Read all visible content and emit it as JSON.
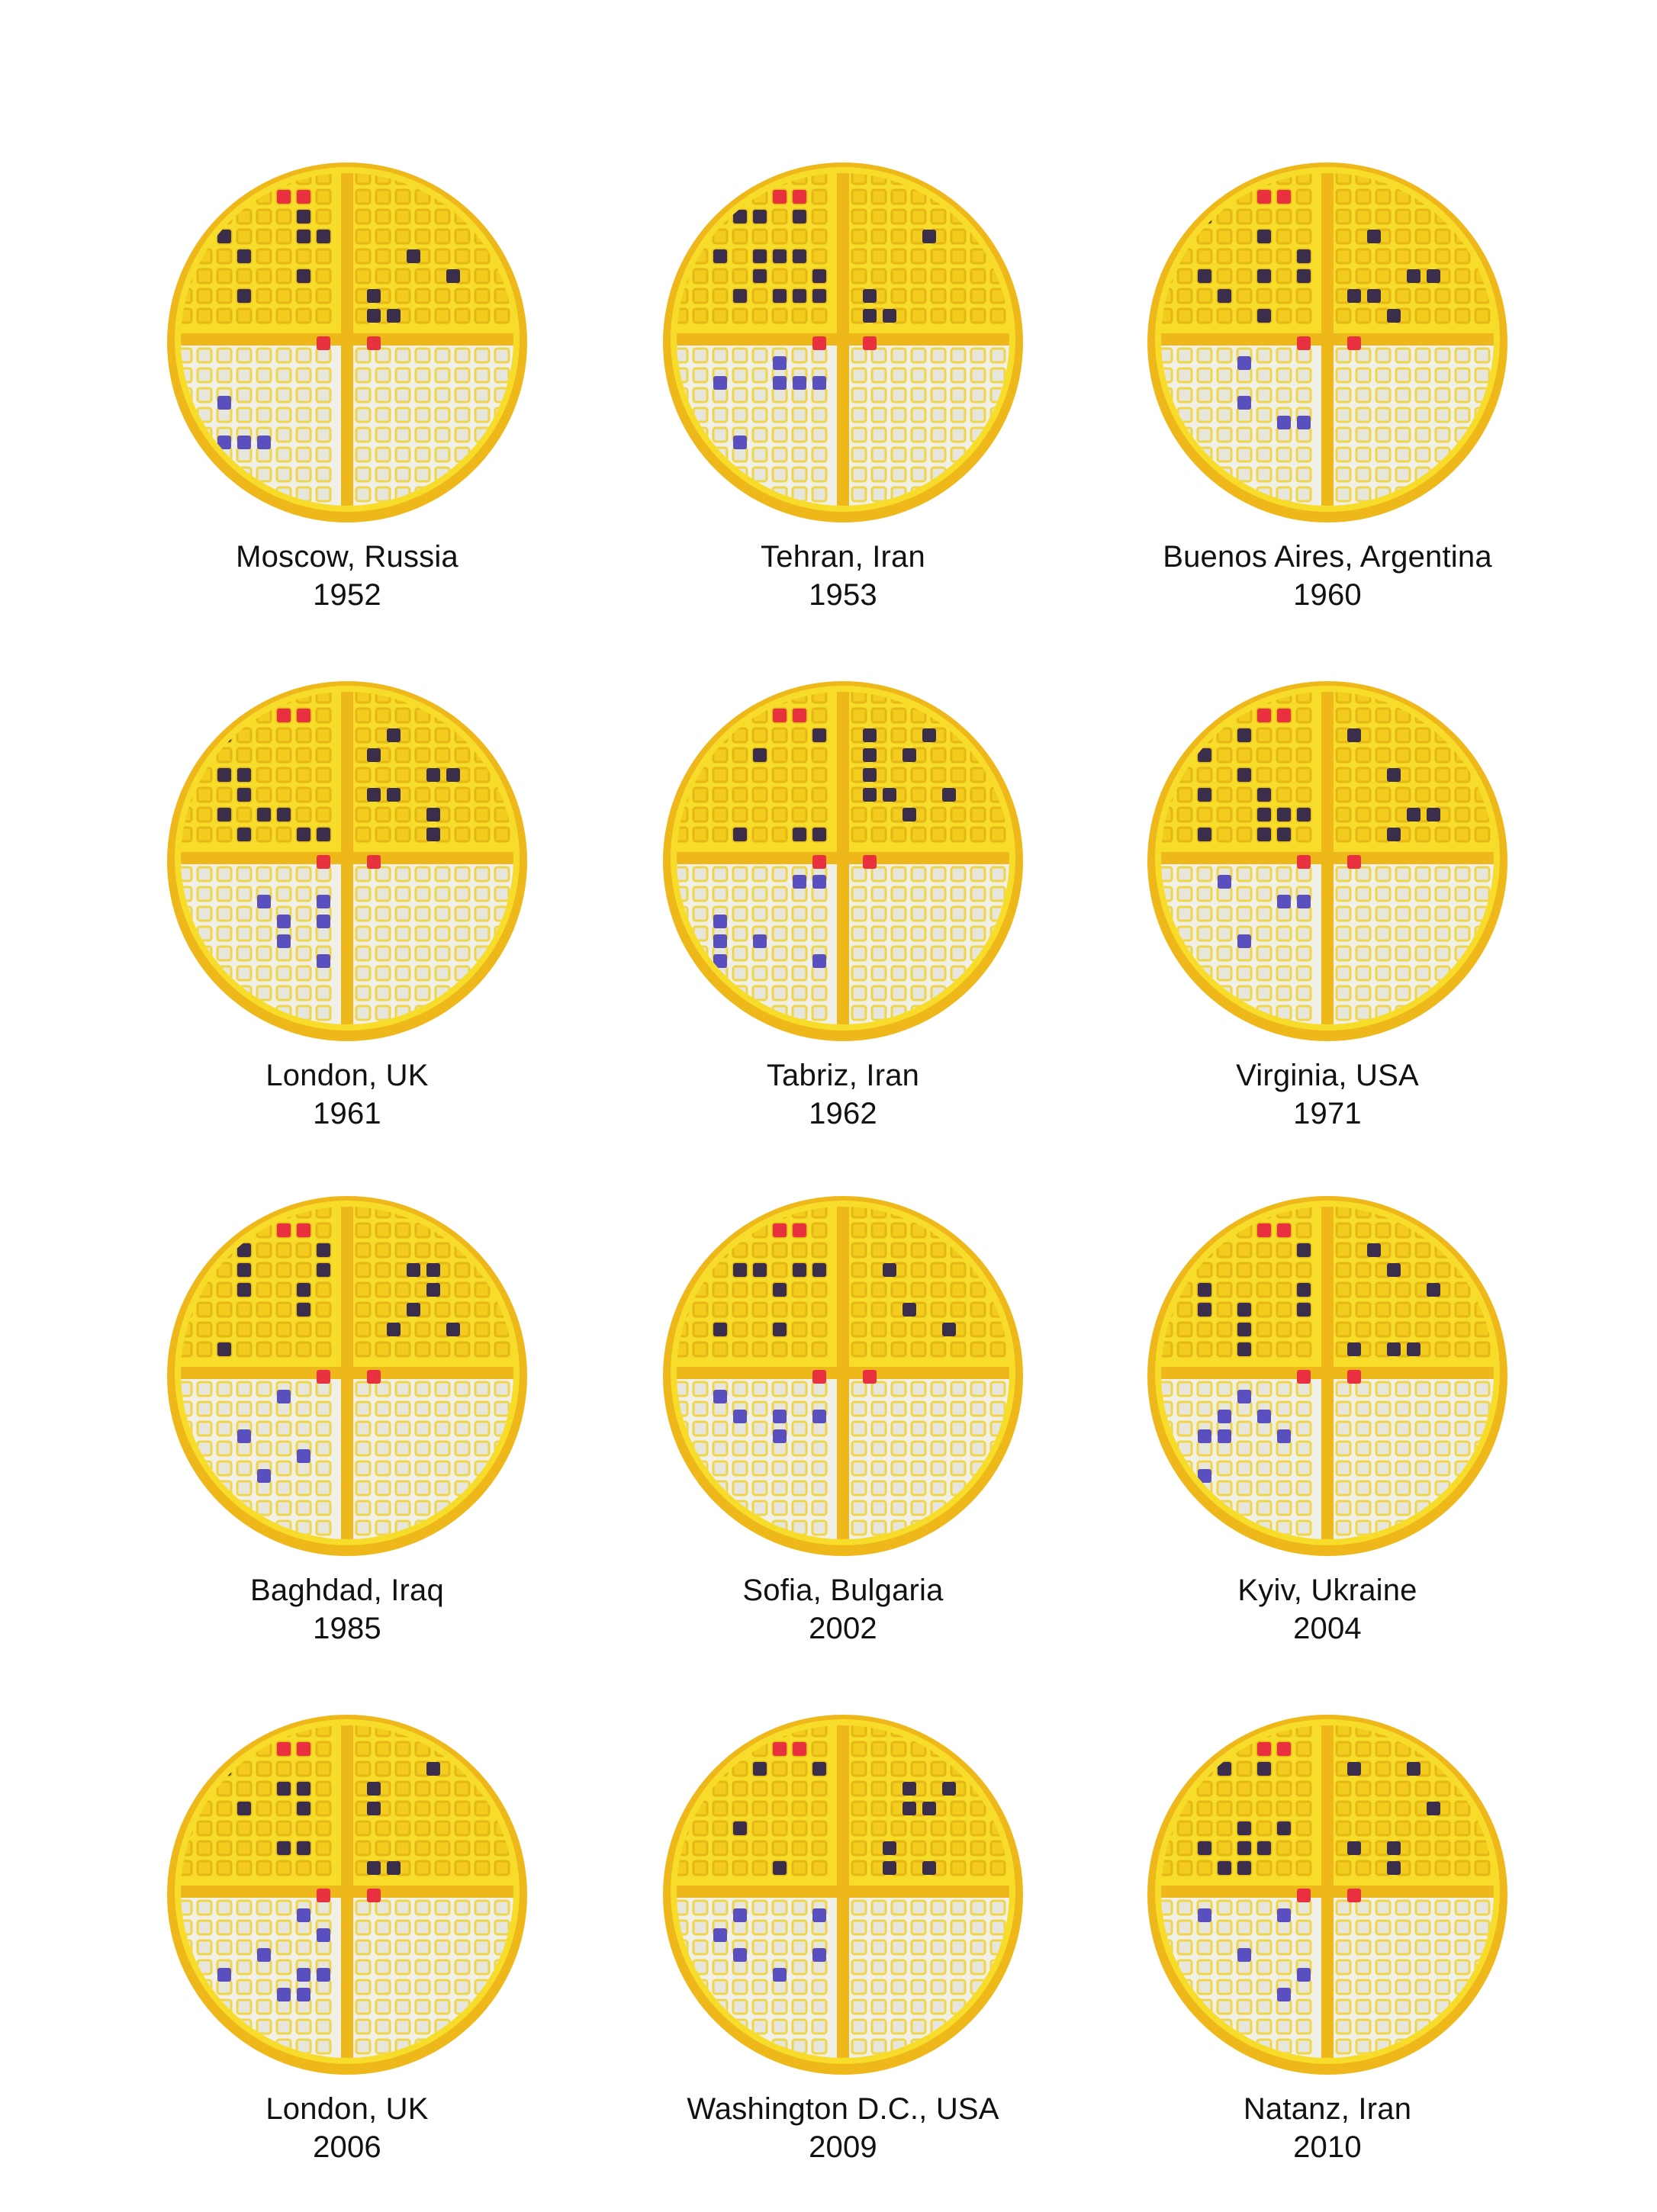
{
  "colors": {
    "waffle_yellow": "#f7dc2a",
    "waffle_rim": "#efb81a",
    "white_half": "#f1f0e6",
    "red_square": "#e8303f",
    "dark_square": "#3b2e4a",
    "blue_square": "#5a4fbf"
  },
  "items": [
    {
      "place": "Moscow, Russia",
      "year": "1952",
      "seed": 1
    },
    {
      "place": "Tehran, Iran",
      "year": "1953",
      "seed": 2
    },
    {
      "place": "Buenos Aires, Argentina",
      "year": "1960",
      "seed": 3
    },
    {
      "place": "London, UK",
      "year": "1961",
      "seed": 4
    },
    {
      "place": "Tabriz, Iran",
      "year": "1962",
      "seed": 5
    },
    {
      "place": "Virginia, USA",
      "year": "1971",
      "seed": 6
    },
    {
      "place": "Baghdad, Iraq",
      "year": "1985",
      "seed": 7
    },
    {
      "place": "Sofia, Bulgaria",
      "year": "2002",
      "seed": 8
    },
    {
      "place": "Kyiv, Ukraine",
      "year": "2004",
      "seed": 9
    },
    {
      "place": "London, UK",
      "year": "2006",
      "seed": 10
    },
    {
      "place": "Washington D.C., USA",
      "year": "2009",
      "seed": 11
    },
    {
      "place": "Natanz, Iran",
      "year": "2010",
      "seed": 12
    }
  ]
}
